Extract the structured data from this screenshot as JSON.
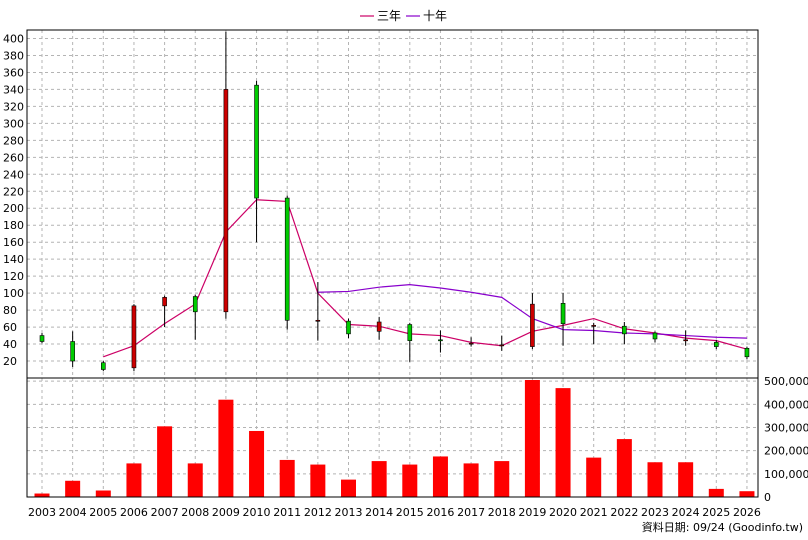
{
  "legend": {
    "ma3_label": "三年",
    "ma10_label": "十年"
  },
  "source_text": "資料日期: 09/24  (Goodinfo.tw)",
  "colors": {
    "up": "#00cc00",
    "down": "#cc0000",
    "ma3": "#cc0066",
    "ma10": "#8800cc",
    "volume": "#ff0000",
    "grid": "#b4b4b4"
  },
  "chart_data": [
    {
      "type": "candlestick",
      "title": "",
      "categories": [
        "2003",
        "2004",
        "2005",
        "2006",
        "2007",
        "2008",
        "2009",
        "2010",
        "2011",
        "2012",
        "2013",
        "2014",
        "2015",
        "2016",
        "2017",
        "2018",
        "2019",
        "2020",
        "2021",
        "2022",
        "2023",
        "2024",
        "2025",
        "2026"
      ],
      "ylim": [
        0,
        410
      ],
      "yticks": [
        20,
        40,
        60,
        80,
        100,
        120,
        140,
        160,
        180,
        200,
        220,
        240,
        260,
        280,
        300,
        320,
        340,
        360,
        380,
        400
      ],
      "grid": true,
      "candles": [
        {
          "open": 43,
          "close": 50,
          "high": 53,
          "low": 41
        },
        {
          "open": 20,
          "close": 43,
          "high": 55,
          "low": 13
        },
        {
          "open": 10,
          "close": 18,
          "high": 20,
          "low": 8
        },
        {
          "open": 85,
          "close": 12,
          "high": 87,
          "low": 8
        },
        {
          "open": 95,
          "close": 85,
          "high": 97,
          "low": 60
        },
        {
          "open": 78,
          "close": 96,
          "high": 98,
          "low": 45
        },
        {
          "open": 340,
          "close": 78,
          "high": 408,
          "low": 70
        },
        {
          "open": 212,
          "close": 345,
          "high": 350,
          "low": 160
        },
        {
          "open": 68,
          "close": 212,
          "high": 215,
          "low": 57
        },
        {
          "open": 68,
          "close": 67,
          "high": 113,
          "low": 44
        },
        {
          "open": 52,
          "close": 67,
          "high": 70,
          "low": 47
        },
        {
          "open": 66,
          "close": 55,
          "high": 72,
          "low": 45
        },
        {
          "open": 44,
          "close": 63,
          "high": 65,
          "low": 19
        },
        {
          "open": 45,
          "close": 45,
          "high": 56,
          "low": 30
        },
        {
          "open": 41,
          "close": 40,
          "high": 48,
          "low": 37
        },
        {
          "open": 39,
          "close": 38,
          "high": 50,
          "low": 32
        },
        {
          "open": 87,
          "close": 37,
          "high": 100,
          "low": 34
        },
        {
          "open": 64,
          "close": 88,
          "high": 100,
          "low": 38
        },
        {
          "open": 62,
          "close": 61,
          "high": 65,
          "low": 40
        },
        {
          "open": 52,
          "close": 61,
          "high": 66,
          "low": 40
        },
        {
          "open": 46,
          "close": 53,
          "high": 55,
          "low": 42
        },
        {
          "open": 45,
          "close": 44,
          "high": 56,
          "low": 38
        },
        {
          "open": 37,
          "close": 42,
          "high": 45,
          "low": 34
        },
        {
          "open": 25,
          "close": 35,
          "high": 37,
          "low": 22
        }
      ],
      "series": [
        {
          "name": "三年",
          "values": [
            null,
            null,
            25,
            38,
            64,
            87,
            172,
            210,
            208,
            100,
            63,
            61,
            52,
            50,
            42,
            38,
            55,
            62,
            70,
            58,
            53,
            47,
            44,
            34
          ]
        },
        {
          "name": "十年",
          "values": [
            null,
            null,
            null,
            null,
            null,
            null,
            null,
            null,
            null,
            101,
            102,
            107,
            110,
            106,
            101,
            95,
            70,
            57,
            56,
            53,
            52,
            50,
            48,
            47
          ]
        }
      ]
    },
    {
      "type": "bar",
      "title": "",
      "categories": [
        "2003",
        "2004",
        "2005",
        "2006",
        "2007",
        "2008",
        "2009",
        "2010",
        "2011",
        "2012",
        "2013",
        "2014",
        "2015",
        "2016",
        "2017",
        "2018",
        "2019",
        "2020",
        "2021",
        "2022",
        "2023",
        "2024",
        "2025",
        "2026"
      ],
      "values": [
        15000,
        70000,
        28000,
        145000,
        305000,
        145000,
        420000,
        285000,
        160000,
        140000,
        75000,
        155000,
        140000,
        175000,
        145000,
        155000,
        505000,
        470000,
        170000,
        250000,
        150000,
        150000,
        35000,
        25000
      ],
      "ylim": [
        0,
        505000
      ],
      "yticks": [
        0,
        100000,
        200000,
        300000,
        400000,
        500000
      ],
      "ytick_labels": [
        "0",
        "100,000",
        "200,000",
        "300,000",
        "400,000",
        "500,000"
      ],
      "grid": true
    }
  ]
}
